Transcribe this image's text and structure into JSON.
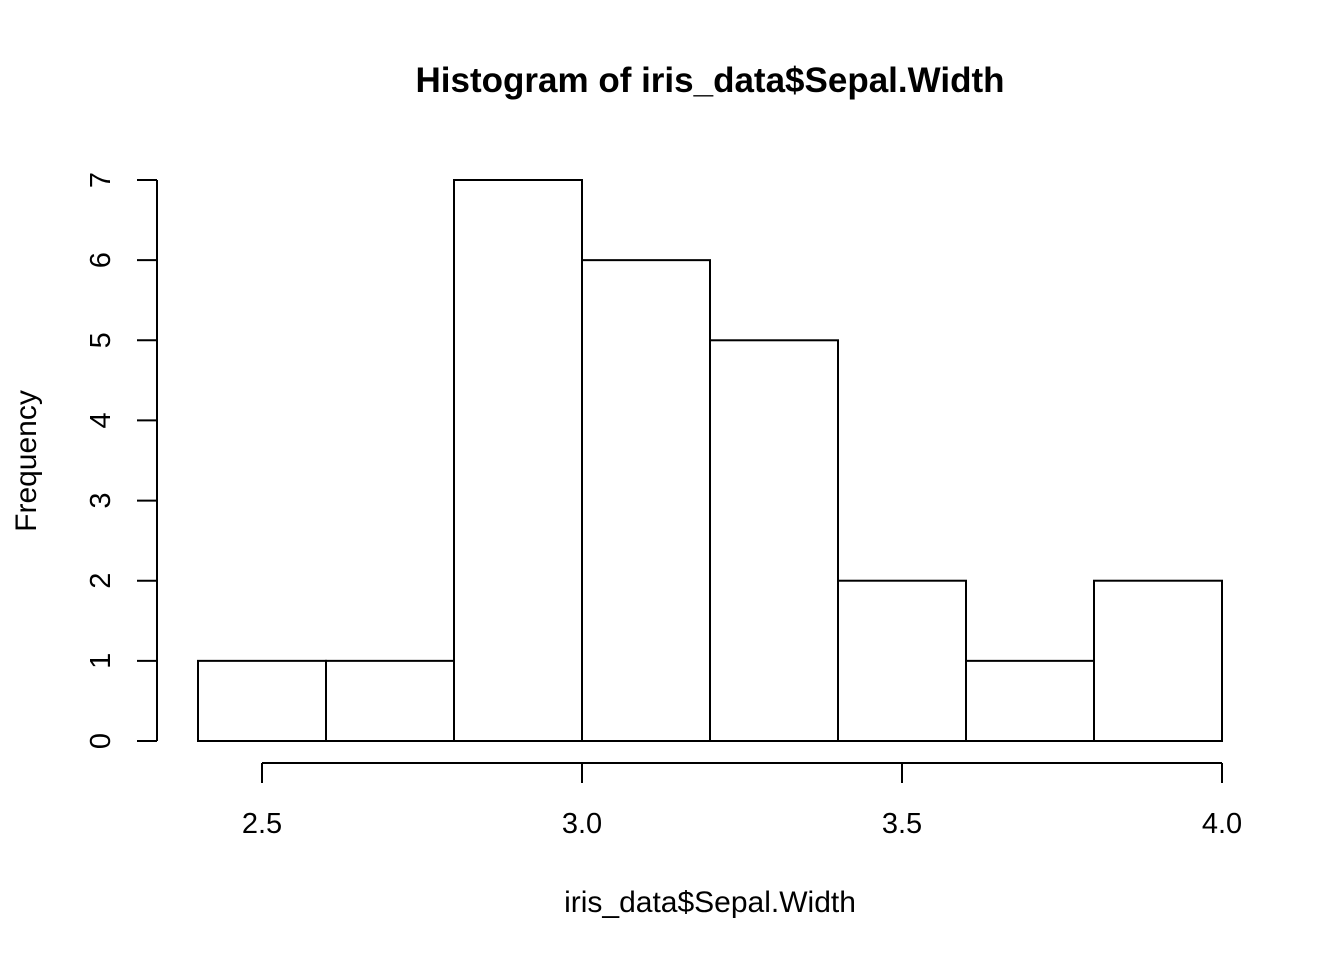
{
  "chart_data": {
    "type": "bar",
    "subtype": "histogram",
    "title": "Histogram of iris_data$Sepal.Width",
    "xlabel": "iris_data$Sepal.Width",
    "ylabel": "Frequency",
    "bin_edges": [
      2.4,
      2.6,
      2.8,
      3.0,
      3.2,
      3.4,
      3.6,
      3.8,
      4.0
    ],
    "values": [
      1,
      1,
      7,
      6,
      5,
      2,
      1,
      2
    ],
    "xlim": [
      2.4,
      4.0
    ],
    "ylim": [
      0,
      7
    ],
    "x_ticks": [
      2.5,
      3.0,
      3.5,
      4.0
    ],
    "x_tick_labels": [
      "2.5",
      "3.0",
      "3.5",
      "4.0"
    ],
    "y_ticks": [
      0,
      1,
      2,
      3,
      4,
      5,
      6,
      7
    ],
    "y_tick_labels": [
      "0",
      "1",
      "2",
      "3",
      "4",
      "5",
      "6",
      "7"
    ],
    "grid": false,
    "legend": "none",
    "colors": {
      "bar_fill": "#ffffff",
      "bar_stroke": "#000000",
      "axis": "#000000",
      "text": "#000000"
    }
  }
}
